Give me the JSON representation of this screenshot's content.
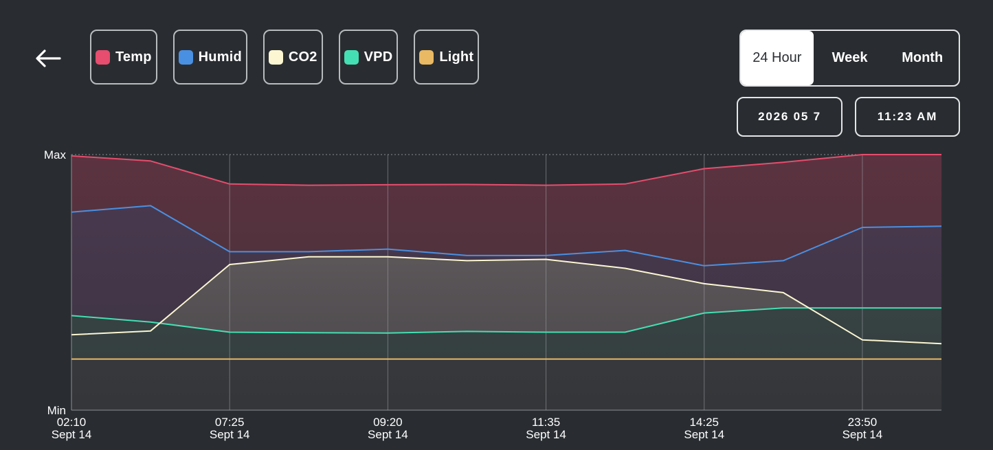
{
  "header": {
    "back_icon": "arrow-left-icon",
    "legend": [
      {
        "label": "Temp",
        "color": "#e64d6e"
      },
      {
        "label": "Humid",
        "color": "#4a90e2"
      },
      {
        "label": "CO2",
        "color": "#fcf7d2"
      },
      {
        "label": "VPD",
        "color": "#44dfb2"
      },
      {
        "label": "Light",
        "color": "#e9b963"
      }
    ]
  },
  "range_selector": {
    "options": [
      "24 Hour",
      "Week",
      "Month"
    ],
    "selected": "24 Hour"
  },
  "date_label": "2026 05 7",
  "time_label": "11:23 AM",
  "chart_data": {
    "type": "area",
    "y_range_labels": {
      "max": "Max",
      "min": "Min"
    },
    "ylim": [
      0,
      100
    ],
    "grid": true,
    "x": [
      "02:10",
      "",
      "07:25",
      "",
      "09:20",
      "",
      "11:35",
      "",
      "14:25",
      "",
      "23:50",
      ""
    ],
    "x_tick_labels": [
      {
        "time": "02:10",
        "date": "Sept 14",
        "index": 0
      },
      {
        "time": "07:25",
        "date": "Sept 14",
        "index": 2
      },
      {
        "time": "09:20",
        "date": "Sept 14",
        "index": 4
      },
      {
        "time": "11:35",
        "date": "Sept 14",
        "index": 6
      },
      {
        "time": "14:25",
        "date": "Sept 14",
        "index": 8
      },
      {
        "time": "23:50",
        "date": "Sept 14",
        "index": 10
      }
    ],
    "series": [
      {
        "name": "Temp",
        "color": "#e64d6e",
        "fill": "#5c3340",
        "values": [
          99.5,
          97.5,
          88.5,
          88.0,
          88.2,
          88.3,
          88.0,
          88.5,
          94.5,
          97.0,
          100.0,
          100.0
        ]
      },
      {
        "name": "Humid",
        "color": "#4a90e2",
        "fill": "#4d3a52",
        "values": [
          77.5,
          80,
          62,
          62,
          63,
          60.5,
          60.5,
          62.5,
          56.5,
          58.5,
          71.5,
          72
        ]
      },
      {
        "name": "CO2",
        "color": "#fcf7d2",
        "fill": "#6a6264",
        "values": [
          29.5,
          31,
          57,
          60,
          60,
          58.5,
          59,
          55.5,
          49.5,
          46,
          27.5,
          26
        ]
      },
      {
        "name": "VPD",
        "color": "#44dfb2",
        "fill": "#3e4d4c",
        "values": [
          37,
          34.5,
          30.5,
          30.3,
          30.2,
          30.8,
          30.5,
          30.5,
          38,
          40,
          40,
          40
        ]
      },
      {
        "name": "Light",
        "color": "#e9b963",
        "fill": "#414144",
        "values": [
          20,
          20,
          20,
          20,
          20,
          20,
          20,
          20,
          20,
          20,
          20,
          20
        ]
      }
    ]
  }
}
